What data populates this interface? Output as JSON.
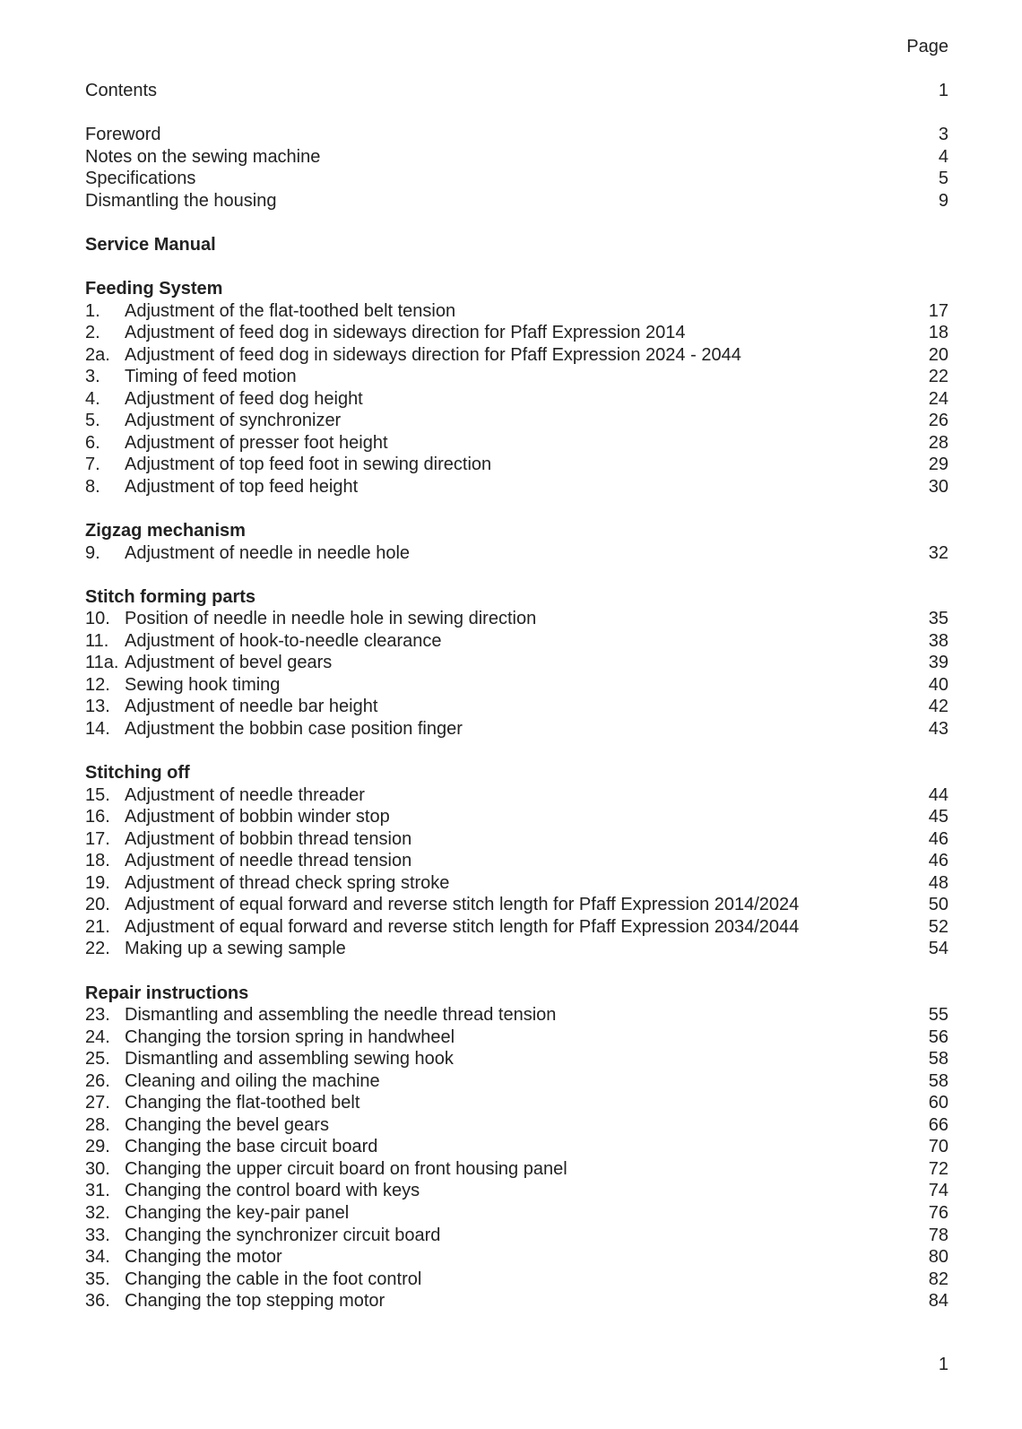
{
  "header": {
    "page_label": "Page"
  },
  "contents": {
    "label": "Contents",
    "page": "1"
  },
  "front_matter": [
    {
      "title": "Foreword",
      "page": "3"
    },
    {
      "title": "Notes on the sewing machine",
      "page": "4"
    },
    {
      "title": "Specifications",
      "page": "5"
    },
    {
      "title": "Dismantling the housing",
      "page": "9"
    }
  ],
  "manual_title": "Service Manual",
  "sections": [
    {
      "heading": "Feeding System",
      "items": [
        {
          "num": "1.",
          "title": "Adjustment of the flat-toothed belt tension",
          "page": "17"
        },
        {
          "num": "2.",
          "title": "Adjustment of feed dog in sideways direction for Pfaff Expression 2014",
          "page": "18"
        },
        {
          "num": "2a.",
          "title": "Adjustment of feed dog in sideways direction for Pfaff Expression 2024 - 2044",
          "page": "20"
        },
        {
          "num": "3.",
          "title": "Timing of feed motion",
          "page": "22"
        },
        {
          "num": "4.",
          "title": "Adjustment of feed dog height",
          "page": "24"
        },
        {
          "num": "5.",
          "title": "Adjustment of synchronizer",
          "page": "26"
        },
        {
          "num": "6.",
          "title": "Adjustment of presser foot height",
          "page": "28"
        },
        {
          "num": "7.",
          "title": "Adjustment of top feed foot in sewing direction",
          "page": "29"
        },
        {
          "num": "8.",
          "title": "Adjustment of top feed height",
          "page": "30"
        }
      ]
    },
    {
      "heading": "Zigzag mechanism",
      "items": [
        {
          "num": "9.",
          "title": "Adjustment of needle in needle hole",
          "page": "32"
        }
      ]
    },
    {
      "heading": "Stitch forming parts",
      "items": [
        {
          "num": "10.",
          "title": "Position of needle in needle hole in sewing direction",
          "page": "35"
        },
        {
          "num": "11.",
          "title": "Adjustment of hook-to-needle clearance",
          "page": "38"
        },
        {
          "num": "11a.",
          "title": "Adjustment of bevel gears",
          "page": "39"
        },
        {
          "num": "12.",
          "title": "Sewing hook timing",
          "page": "40"
        },
        {
          "num": "13.",
          "title": "Adjustment of needle bar height",
          "page": "42"
        },
        {
          "num": "14.",
          "title": "Adjustment the bobbin case position finger",
          "page": "43"
        }
      ]
    },
    {
      "heading": "Stitching off",
      "items": [
        {
          "num": "15.",
          "title": "Adjustment of needle threader",
          "page": "44"
        },
        {
          "num": "16.",
          "title": "Adjustment of bobbin winder stop",
          "page": "45"
        },
        {
          "num": "17.",
          "title": "Adjustment of bobbin thread tension",
          "page": "46"
        },
        {
          "num": "18.",
          "title": "Adjustment of needle thread tension",
          "page": "46"
        },
        {
          "num": "19.",
          "title": "Adjustment of thread check spring stroke",
          "page": "48"
        },
        {
          "num": "20.",
          "title": "Adjustment of equal forward and reverse stitch length for Pfaff Expression 2014/2024",
          "page": "50"
        },
        {
          "num": "21.",
          "title": "Adjustment of equal forward and reverse stitch length for Pfaff Expression 2034/2044",
          "page": "52"
        },
        {
          "num": "22.",
          "title": "Making up a sewing sample",
          "page": "54"
        }
      ]
    },
    {
      "heading": "Repair instructions",
      "items": [
        {
          "num": "23.",
          "title": "Dismantling and assembling the needle thread tension",
          "page": "55"
        },
        {
          "num": "24.",
          "title": "Changing the torsion spring in handwheel",
          "page": "56"
        },
        {
          "num": "25.",
          "title": "Dismantling and assembling sewing hook",
          "page": "58"
        },
        {
          "num": "26.",
          "title": "Cleaning and oiling the machine",
          "page": "58"
        },
        {
          "num": "27.",
          "title": "Changing the flat-toothed belt",
          "page": "60"
        },
        {
          "num": "28.",
          "title": "Changing the bevel gears",
          "page": "66"
        },
        {
          "num": "29.",
          "title": "Changing the base circuit board",
          "page": "70"
        },
        {
          "num": "30.",
          "title": "Changing the upper circuit board on front housing panel",
          "page": "72"
        },
        {
          "num": "31.",
          "title": "Changing the control board with keys",
          "page": "74"
        },
        {
          "num": "32.",
          "title": "Changing the key-pair panel",
          "page": "76"
        },
        {
          "num": "33.",
          "title": "Changing the synchronizer circuit board",
          "page": "78"
        },
        {
          "num": "34.",
          "title": "Changing the motor",
          "page": "80"
        },
        {
          "num": "35.",
          "title": "Changing the cable in the foot control",
          "page": "82"
        },
        {
          "num": "36.",
          "title": "Changing the top stepping motor",
          "page": "84"
        }
      ]
    }
  ],
  "footer": {
    "page_number": "1"
  }
}
